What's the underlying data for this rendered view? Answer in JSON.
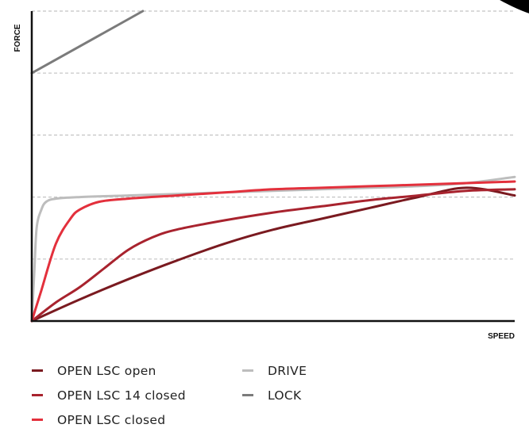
{
  "chart_data": {
    "type": "line",
    "title": "",
    "xlabel": "SPEED",
    "ylabel": "FORCE",
    "xlim": [
      0,
      100
    ],
    "ylim": [
      0,
      100
    ],
    "grid": "horizontal dashed",
    "legend_placement": "bottom",
    "series": [
      {
        "name": "OPEN LSC open",
        "color": "#7a1a20",
        "x": [
          0,
          10,
          20,
          30,
          40,
          50,
          60,
          70,
          80,
          90,
          100
        ],
        "y": [
          0,
          7,
          13.5,
          19.5,
          25,
          29.5,
          33,
          36.5,
          40,
          43,
          40.5
        ]
      },
      {
        "name": "OPEN LSC 14 closed",
        "color": "#a8232e",
        "x": [
          0,
          5,
          10,
          15,
          20,
          25,
          30,
          40,
          50,
          60,
          70,
          80,
          90,
          100
        ],
        "y": [
          0,
          6,
          11,
          17,
          23,
          27,
          29.5,
          32.5,
          35,
          37,
          39,
          40.5,
          42,
          42.5
        ]
      },
      {
        "name": "OPEN LSC closed",
        "color": "#e3303c",
        "x": [
          0,
          2,
          5,
          8,
          10,
          14,
          20,
          30,
          40,
          50,
          60,
          70,
          80,
          90,
          100
        ],
        "y": [
          0,
          10,
          25,
          33,
          36,
          38.5,
          39.5,
          40.5,
          41.5,
          42.5,
          43,
          43.5,
          44,
          44.5,
          45
        ]
      },
      {
        "name": "DRIVE",
        "color": "#bdbdbd",
        "x": [
          0,
          0.5,
          1,
          2,
          3,
          5,
          10,
          20,
          30,
          40,
          50,
          60,
          70,
          80,
          90,
          100
        ],
        "y": [
          0,
          15,
          30,
          36,
          38.5,
          39.5,
          40,
          40.5,
          41,
          41.5,
          42,
          42.5,
          43,
          43.5,
          44.5,
          46.5
        ]
      },
      {
        "name": "LOCK",
        "color": "#7b7b7b",
        "x": [
          0,
          23
        ],
        "y": [
          80,
          100
        ]
      }
    ]
  }
}
